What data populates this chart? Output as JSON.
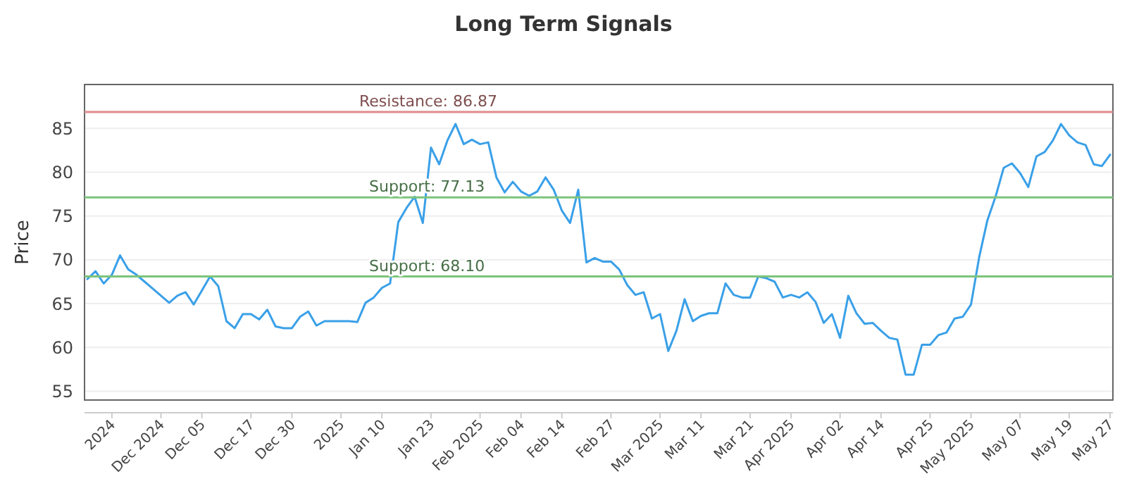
{
  "chart_data": {
    "type": "line",
    "title": "Long Term Signals",
    "ylabel": "Price",
    "categories": [
      null,
      null,
      null,
      "2024",
      null,
      null,
      null,
      null,
      null,
      "Dec 2024",
      null,
      null,
      null,
      null,
      "Dec 05",
      null,
      null,
      null,
      null,
      null,
      "Dec 17",
      null,
      null,
      null,
      null,
      "Dec 30",
      null,
      null,
      null,
      null,
      null,
      "2025",
      null,
      null,
      null,
      null,
      "Jan 10",
      null,
      null,
      null,
      null,
      null,
      "Jan 23",
      null,
      null,
      null,
      null,
      null,
      "Feb 2025",
      null,
      null,
      null,
      null,
      "Feb 04",
      null,
      null,
      null,
      null,
      "Feb 14",
      null,
      null,
      null,
      null,
      null,
      "Feb 27",
      null,
      null,
      null,
      null,
      null,
      "Mar 2025",
      null,
      null,
      null,
      null,
      "Mar 11",
      null,
      null,
      null,
      null,
      null,
      "Mar 21",
      null,
      null,
      null,
      null,
      "Apr 2025",
      null,
      null,
      null,
      null,
      null,
      "Apr 02",
      null,
      null,
      null,
      null,
      "Apr 14",
      null,
      null,
      null,
      null,
      null,
      "Apr 25",
      null,
      null,
      null,
      null,
      "May 2025",
      null,
      null,
      null,
      null,
      null,
      "May 07",
      null,
      null,
      null,
      null,
      null,
      "May 19",
      null,
      null,
      null,
      null,
      "May 27"
    ],
    "series": [
      {
        "color": "#3aa0e8",
        "values": [
          67.8,
          68.7,
          67.3,
          68.3,
          70.5,
          68.9,
          68.3,
          67.5,
          66.7,
          65.9,
          65.1,
          65.9,
          66.3,
          64.9,
          66.5,
          68.1,
          67.0,
          63.0,
          62.2,
          63.8,
          63.8,
          63.2,
          64.3,
          62.4,
          62.2,
          62.2,
          63.5,
          64.1,
          62.5,
          63.0,
          63.0,
          63.0,
          63.0,
          62.9,
          65.1,
          65.7,
          66.8,
          67.3,
          74.3,
          75.9,
          77.2,
          74.2,
          82.8,
          80.9,
          83.6,
          85.5,
          83.2,
          83.7,
          83.2,
          83.4,
          79.4,
          77.7,
          78.9,
          77.8,
          77.3,
          77.8,
          79.4,
          78.0,
          75.6,
          74.2,
          78.0,
          69.7,
          70.2,
          69.8,
          69.8,
          68.9,
          67.1,
          66.0,
          66.3,
          63.3,
          63.8,
          59.6,
          61.9,
          65.5,
          63.0,
          63.6,
          63.9,
          63.9,
          67.3,
          66.0,
          65.7,
          65.7,
          68.1,
          67.9,
          67.5,
          65.7,
          66.0,
          65.7,
          66.3,
          65.2,
          62.8,
          63.8,
          61.1,
          65.9,
          63.9,
          62.7,
          62.8,
          61.9,
          61.1,
          60.9,
          56.9,
          56.9,
          60.3,
          60.3,
          61.4,
          61.7,
          63.3,
          63.5,
          64.9,
          70.3,
          74.5,
          77.2,
          80.5,
          81.0,
          79.9,
          78.3,
          81.8,
          82.3,
          83.6,
          85.5,
          84.2,
          83.4,
          83.1,
          80.9,
          80.7,
          82.0
        ]
      }
    ],
    "ylim": [
      54,
      90
    ],
    "yticks": [
      55,
      60,
      65,
      70,
      75,
      80,
      85
    ],
    "grid": "y",
    "marker": "none",
    "line_style": "solid",
    "ref_lines": [
      {
        "axis": "y",
        "value": 86.87,
        "label": "Resistance: 86.87",
        "color": "#e08a8a"
      },
      {
        "axis": "y",
        "value": 77.13,
        "label": "Support: 77.13",
        "color": "#7cc47c"
      },
      {
        "axis": "y",
        "value": 68.1,
        "label": "Support: 68.10",
        "color": "#7cc47c"
      }
    ]
  }
}
